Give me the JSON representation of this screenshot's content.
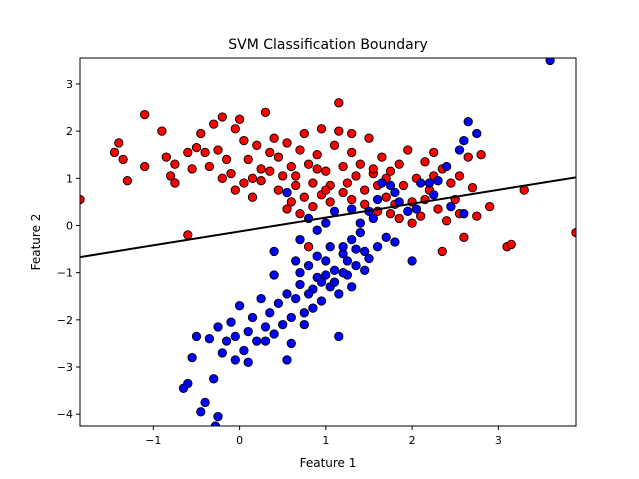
{
  "chart_data": {
    "type": "scatter",
    "title": "SVM Classification Boundary",
    "xlabel": "Feature 1",
    "ylabel": "Feature 2",
    "xlim": [
      -1.85,
      3.9
    ],
    "ylim": [
      -4.25,
      3.55
    ],
    "xticks": [
      -1,
      0,
      1,
      2,
      3
    ],
    "yticks": [
      -4,
      -3,
      -2,
      -1,
      0,
      1,
      2,
      3
    ],
    "grid": false,
    "legend": "none",
    "decision_boundary": {
      "x": [
        -1.85,
        3.9
      ],
      "y": [
        -0.67,
        1.02
      ],
      "color": "#000000"
    },
    "series": [
      {
        "color": "#ff0000",
        "points": [
          [
            -1.85,
            0.55
          ],
          [
            -1.1,
            2.35
          ],
          [
            -0.9,
            2.0
          ],
          [
            -1.45,
            1.55
          ],
          [
            -1.3,
            0.95
          ],
          [
            -1.4,
            1.75
          ],
          [
            -1.35,
            1.4
          ],
          [
            -1.1,
            1.25
          ],
          [
            -0.85,
            1.45
          ],
          [
            -0.75,
            1.3
          ],
          [
            -0.8,
            1.05
          ],
          [
            -0.75,
            0.9
          ],
          [
            -0.6,
            1.55
          ],
          [
            -0.55,
            1.2
          ],
          [
            -0.5,
            1.65
          ],
          [
            -0.45,
            1.95
          ],
          [
            -0.4,
            1.55
          ],
          [
            -0.35,
            1.25
          ],
          [
            -0.3,
            2.15
          ],
          [
            -0.25,
            1.6
          ],
          [
            -0.2,
            2.3
          ],
          [
            -0.15,
            1.4
          ],
          [
            -0.1,
            1.1
          ],
          [
            -0.05,
            2.05
          ],
          [
            0.0,
            2.25
          ],
          [
            0.05,
            1.8
          ],
          [
            0.1,
            1.4
          ],
          [
            0.15,
            1.0
          ],
          [
            0.2,
            1.7
          ],
          [
            0.25,
            1.2
          ],
          [
            0.3,
            2.4
          ],
          [
            0.35,
            1.55
          ],
          [
            0.4,
            1.85
          ],
          [
            0.45,
            1.45
          ],
          [
            0.5,
            1.05
          ],
          [
            0.55,
            1.75
          ],
          [
            0.6,
            1.25
          ],
          [
            0.65,
            0.85
          ],
          [
            0.7,
            1.6
          ],
          [
            0.75,
            1.95
          ],
          [
            0.8,
            1.3
          ],
          [
            0.85,
            0.9
          ],
          [
            0.9,
            1.5
          ],
          [
            0.95,
            2.05
          ],
          [
            1.0,
            1.15
          ],
          [
            1.05,
            0.85
          ],
          [
            1.1,
            1.7
          ],
          [
            1.15,
            2.6
          ],
          [
            1.2,
            1.25
          ],
          [
            1.25,
            0.9
          ],
          [
            1.3,
            1.55
          ],
          [
            1.35,
            1.05
          ],
          [
            1.4,
            1.3
          ],
          [
            1.45,
            0.75
          ],
          [
            1.5,
            1.85
          ],
          [
            1.55,
            1.1
          ],
          [
            1.6,
            0.85
          ],
          [
            1.65,
            1.45
          ],
          [
            1.7,
            0.6
          ],
          [
            1.75,
            1.15
          ],
          [
            1.8,
            0.45
          ],
          [
            1.85,
            1.3
          ],
          [
            1.9,
            0.85
          ],
          [
            1.95,
            1.6
          ],
          [
            2.0,
            0.5
          ],
          [
            2.05,
            1.0
          ],
          [
            2.1,
            0.2
          ],
          [
            2.15,
            1.35
          ],
          [
            2.2,
            0.75
          ],
          [
            2.25,
            1.55
          ],
          [
            2.3,
            0.35
          ],
          [
            2.35,
            1.2
          ],
          [
            2.4,
            0.1
          ],
          [
            2.45,
            0.9
          ],
          [
            2.5,
            0.55
          ],
          [
            2.55,
            0.25
          ],
          [
            2.6,
            -0.25
          ],
          [
            2.65,
            1.45
          ],
          [
            2.7,
            0.8
          ],
          [
            2.75,
            0.2
          ],
          [
            2.8,
            1.5
          ],
          [
            2.9,
            0.4
          ],
          [
            3.1,
            -0.45
          ],
          [
            3.15,
            -0.4
          ],
          [
            3.3,
            0.75
          ],
          [
            3.9,
            -0.15
          ],
          [
            -0.6,
            -0.2
          ],
          [
            0.8,
            -0.45
          ],
          [
            2.35,
            -0.55
          ],
          [
            1.15,
            2.0
          ],
          [
            1.3,
            1.95
          ],
          [
            0.35,
            1.15
          ],
          [
            0.05,
            0.9
          ],
          [
            0.55,
            0.35
          ],
          [
            0.6,
            0.5
          ],
          [
            0.7,
            0.25
          ],
          [
            0.75,
            0.6
          ],
          [
            0.85,
            0.4
          ],
          [
            0.95,
            0.65
          ],
          [
            1.05,
            0.5
          ],
          [
            1.2,
            0.7
          ],
          [
            1.3,
            0.55
          ],
          [
            1.45,
            0.45
          ],
          [
            1.6,
            0.3
          ],
          [
            1.75,
            0.25
          ],
          [
            1.85,
            0.15
          ],
          [
            2.0,
            0.05
          ],
          [
            2.15,
            0.55
          ],
          [
            0.45,
            0.75
          ],
          [
            0.25,
            0.95
          ],
          [
            0.15,
            0.6
          ],
          [
            -0.2,
            1.0
          ],
          [
            -0.05,
            0.75
          ],
          [
            0.65,
            1.05
          ],
          [
            1.55,
            1.2
          ],
          [
            1.7,
            1.0
          ],
          [
            2.25,
            1.05
          ],
          [
            2.55,
            1.05
          ],
          [
            0.9,
            1.2
          ],
          [
            1.0,
            0.75
          ]
        ]
      },
      {
        "color": "#0000ff",
        "points": [
          [
            3.6,
            3.5
          ],
          [
            2.65,
            2.2
          ],
          [
            2.75,
            1.95
          ],
          [
            2.6,
            1.8
          ],
          [
            2.55,
            1.6
          ],
          [
            2.4,
            1.25
          ],
          [
            2.3,
            0.95
          ],
          [
            2.45,
            0.4
          ],
          [
            2.6,
            0.25
          ],
          [
            2.25,
            0.65
          ],
          [
            2.1,
            0.9
          ],
          [
            2.0,
            -0.75
          ],
          [
            1.85,
            0.5
          ],
          [
            1.8,
            -0.35
          ],
          [
            1.7,
            -0.25
          ],
          [
            1.75,
            0.85
          ],
          [
            1.6,
            -0.45
          ],
          [
            1.55,
            0.15
          ],
          [
            1.5,
            -0.7
          ],
          [
            1.45,
            -0.55
          ],
          [
            1.4,
            -0.15
          ],
          [
            1.35,
            -0.85
          ],
          [
            1.3,
            -0.3
          ],
          [
            1.25,
            -1.05
          ],
          [
            1.2,
            -0.6
          ],
          [
            1.15,
            -1.45
          ],
          [
            1.1,
            -0.95
          ],
          [
            1.05,
            -1.3
          ],
          [
            1.0,
            -0.75
          ],
          [
            0.95,
            -1.6
          ],
          [
            0.9,
            -1.1
          ],
          [
            0.85,
            -1.35
          ],
          [
            0.8,
            -0.85
          ],
          [
            0.75,
            -1.85
          ],
          [
            0.7,
            -1.25
          ],
          [
            0.65,
            -1.55
          ],
          [
            0.6,
            -1.95
          ],
          [
            0.55,
            -1.45
          ],
          [
            0.5,
            -2.1
          ],
          [
            0.45,
            -1.65
          ],
          [
            0.4,
            -2.3
          ],
          [
            0.35,
            -1.85
          ],
          [
            0.3,
            -2.15
          ],
          [
            0.25,
            -1.55
          ],
          [
            0.2,
            -2.45
          ],
          [
            0.15,
            -1.95
          ],
          [
            0.1,
            -2.25
          ],
          [
            0.05,
            -2.65
          ],
          [
            0.0,
            -1.7
          ],
          [
            -0.05,
            -2.85
          ],
          [
            -0.1,
            -2.05
          ],
          [
            -0.15,
            -2.45
          ],
          [
            -0.2,
            -2.7
          ],
          [
            -0.25,
            -2.15
          ],
          [
            -0.3,
            -3.25
          ],
          [
            -0.35,
            -2.4
          ],
          [
            -0.4,
            -3.75
          ],
          [
            -0.45,
            -3.95
          ],
          [
            -0.5,
            -2.35
          ],
          [
            -0.55,
            -2.8
          ],
          [
            -0.6,
            -3.35
          ],
          [
            -0.65,
            -3.45
          ],
          [
            -0.25,
            -4.05
          ],
          [
            -0.28,
            -4.25
          ],
          [
            0.6,
            -2.5
          ],
          [
            0.55,
            -2.85
          ],
          [
            0.4,
            -1.05
          ],
          [
            0.4,
            -0.55
          ],
          [
            0.7,
            -0.3
          ],
          [
            0.9,
            -0.1
          ],
          [
            1.0,
            0.05
          ],
          [
            1.1,
            0.3
          ],
          [
            1.2,
            -0.45
          ],
          [
            1.3,
            0.35
          ],
          [
            1.4,
            0.05
          ],
          [
            1.5,
            0.3
          ],
          [
            1.6,
            0.55
          ],
          [
            1.65,
            0.9
          ],
          [
            1.8,
            0.7
          ],
          [
            1.95,
            0.3
          ],
          [
            2.05,
            0.35
          ],
          [
            2.2,
            0.9
          ],
          [
            0.55,
            0.7
          ],
          [
            0.8,
            0.15
          ],
          [
            1.15,
            -2.35
          ],
          [
            0.85,
            -1.75
          ],
          [
            0.75,
            -2.1
          ],
          [
            0.95,
            -1.2
          ],
          [
            1.05,
            -0.45
          ],
          [
            1.25,
            -0.75
          ],
          [
            1.35,
            -0.5
          ],
          [
            1.45,
            -0.95
          ],
          [
            0.65,
            -0.75
          ],
          [
            0.7,
            -1.0
          ],
          [
            0.8,
            -1.45
          ],
          [
            0.9,
            -0.65
          ],
          [
            1.0,
            -1.05
          ],
          [
            1.1,
            -1.2
          ],
          [
            1.2,
            -1.0
          ],
          [
            1.3,
            -1.3
          ],
          [
            0.3,
            -2.45
          ],
          [
            0.1,
            -2.9
          ],
          [
            -0.05,
            -2.35
          ]
        ]
      }
    ]
  }
}
